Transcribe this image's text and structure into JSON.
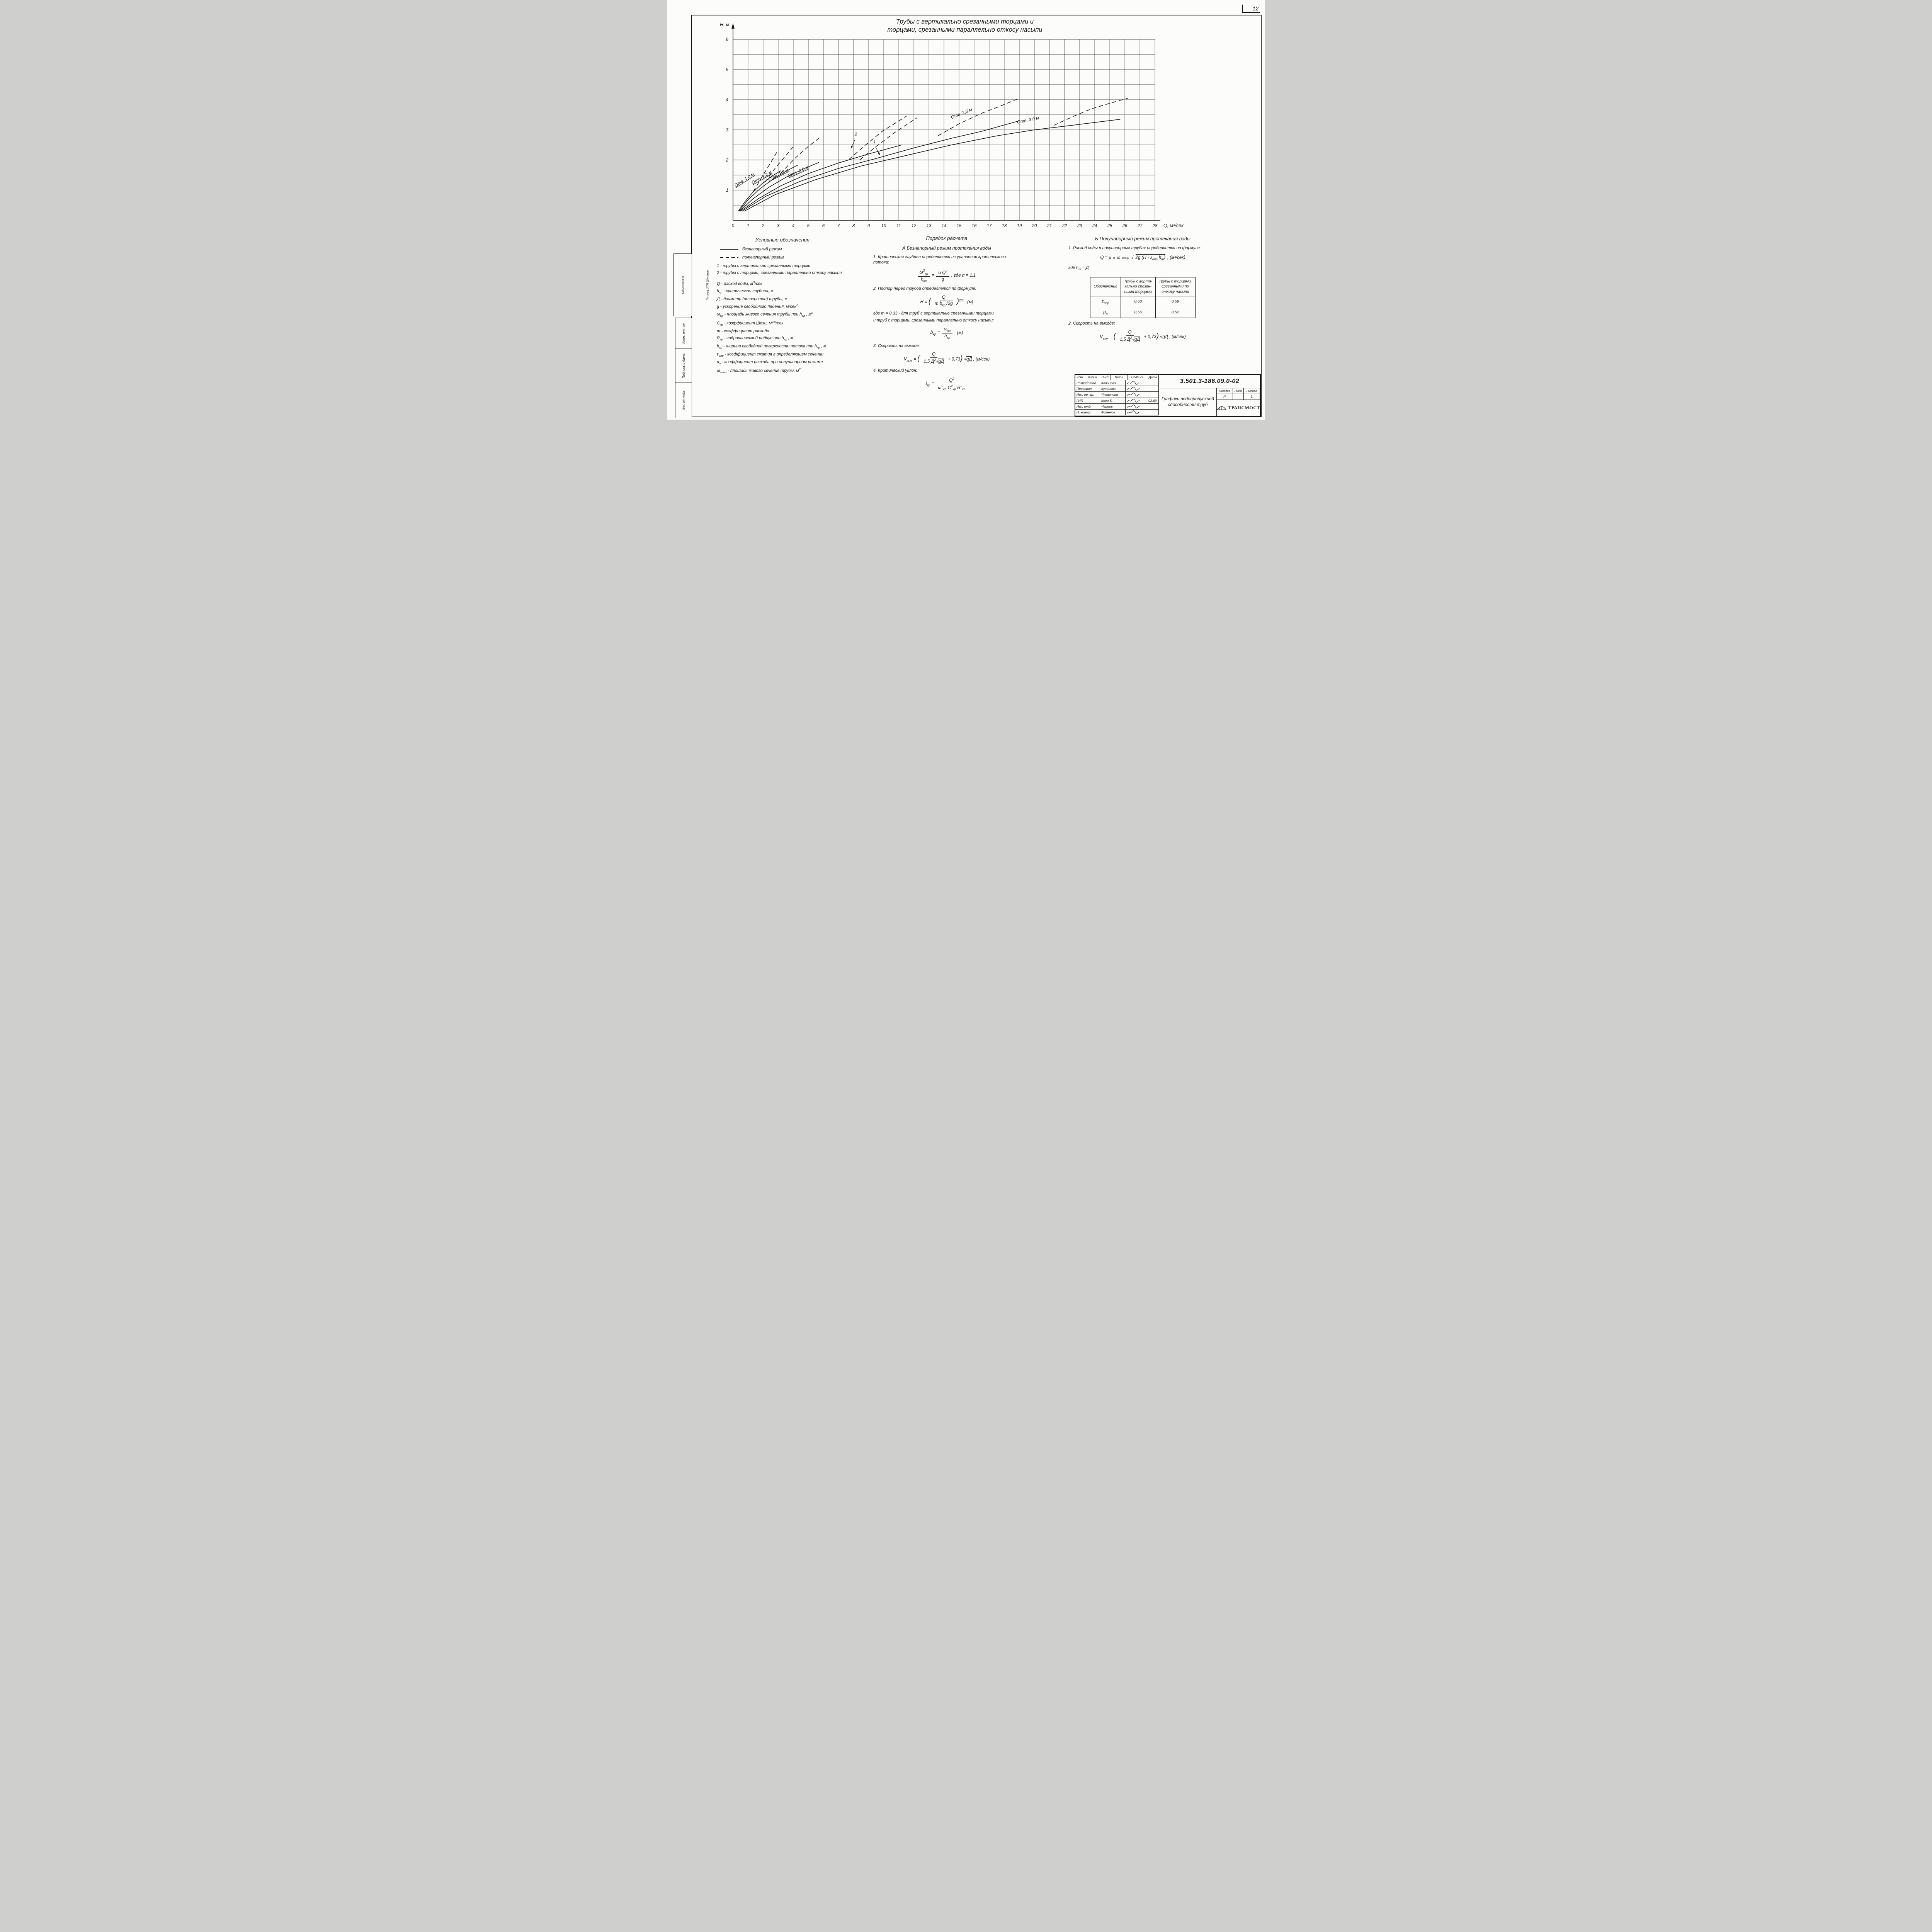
{
  "page": {
    "sheet_number": "12"
  },
  "chart": {
    "title_line1": "Трубы с вертикально срезанными торцами и",
    "title_line2": "торцами, срезанными параллельно откосу насыпи",
    "y_axis_label": "Н, м",
    "x_axis_label": "Q, м³/сек"
  },
  "chart_data": {
    "type": "line",
    "title": "Графики водопропускной способности труб с вертикально срезанными торцами и торцами, срезанными параллельно откосу насыпи",
    "xlabel": "Q, м³/сек",
    "ylabel": "Н, м",
    "xlim": [
      0,
      28
    ],
    "ylim": [
      0,
      6
    ],
    "x_ticks": [
      0,
      1,
      2,
      3,
      4,
      5,
      6,
      7,
      8,
      9,
      10,
      11,
      12,
      13,
      14,
      15,
      16,
      17,
      18,
      19,
      20,
      21,
      22,
      23,
      24,
      25,
      26,
      27,
      28
    ],
    "y_ticks": [
      1,
      2,
      3,
      4,
      5,
      6
    ],
    "grid": {
      "x_step": 1,
      "y_step": 0.5,
      "on": true
    },
    "series": [
      {
        "name": "Отв. 1,0 м",
        "regime": "безнапорный",
        "style": "solid",
        "points": [
          [
            0.35,
            0.3
          ],
          [
            0.8,
            0.62
          ],
          [
            1.3,
            0.92
          ],
          [
            1.9,
            1.2
          ],
          [
            2.6,
            1.47
          ],
          [
            3.2,
            1.65
          ]
        ]
      },
      {
        "name": "Отв. 1,0 м",
        "regime": "полунапорный",
        "style": "dashed",
        "points": [
          [
            1.35,
            0.95
          ],
          [
            1.9,
            1.42
          ],
          [
            2.45,
            1.87
          ],
          [
            2.9,
            2.25
          ]
        ]
      },
      {
        "name": "Отв. 1,2 м",
        "regime": "безнапорный",
        "style": "solid",
        "points": [
          [
            0.4,
            0.3
          ],
          [
            1.0,
            0.68
          ],
          [
            1.8,
            1.05
          ],
          [
            2.7,
            1.38
          ],
          [
            3.6,
            1.65
          ],
          [
            4.3,
            1.83
          ]
        ]
      },
      {
        "name": "Отв. 1,2 м",
        "regime": "полунапорный",
        "style": "dashed",
        "points": [
          [
            2.1,
            1.25
          ],
          [
            2.8,
            1.73
          ],
          [
            3.5,
            2.14
          ],
          [
            4.1,
            2.5
          ]
        ]
      },
      {
        "name": "Отв. 1,5 м",
        "regime": "безнапорный",
        "style": "solid",
        "points": [
          [
            0.45,
            0.3
          ],
          [
            1.3,
            0.7
          ],
          [
            2.4,
            1.1
          ],
          [
            3.6,
            1.45
          ],
          [
            4.8,
            1.73
          ],
          [
            5.7,
            1.92
          ]
        ]
      },
      {
        "name": "Отв. 1,5 м",
        "regime": "полунапорный",
        "style": "dashed",
        "points": [
          [
            3.15,
            1.55
          ],
          [
            4.1,
            2.05
          ],
          [
            5.0,
            2.45
          ],
          [
            5.7,
            2.72
          ]
        ]
      },
      {
        "name": "Отв. 2,0 м",
        "regime": "безнапорный",
        "style": "solid",
        "points": [
          [
            0.5,
            0.3
          ],
          [
            1.7,
            0.72
          ],
          [
            3.2,
            1.15
          ],
          [
            5.0,
            1.55
          ],
          [
            7.0,
            1.9
          ],
          [
            9.0,
            2.2
          ],
          [
            11.2,
            2.5
          ]
        ]
      },
      {
        "name": "Отв. 2,0 м (тип 2)",
        "regime": "полунапорный",
        "style": "dashed",
        "points": [
          [
            7.7,
            2.02
          ],
          [
            8.8,
            2.5
          ],
          [
            9.9,
            2.95
          ],
          [
            11.5,
            3.45
          ]
        ]
      },
      {
        "name": "Отв. 2,0 м (тип 1)",
        "regime": "полунапорный",
        "style": "dashed",
        "points": [
          [
            8.4,
            2.0
          ],
          [
            9.5,
            2.45
          ],
          [
            10.7,
            2.9
          ],
          [
            12.2,
            3.4
          ]
        ]
      },
      {
        "name": "Отв. 2,5 м",
        "regime": "безнапорный",
        "style": "solid",
        "points": [
          [
            0.6,
            0.3
          ],
          [
            2.2,
            0.8
          ],
          [
            4.5,
            1.3
          ],
          [
            7.0,
            1.72
          ],
          [
            9.5,
            2.05
          ],
          [
            12.0,
            2.4
          ],
          [
            14.5,
            2.72
          ],
          [
            16.5,
            2.95
          ],
          [
            19.0,
            3.3
          ]
        ]
      },
      {
        "name": "Отв. 2,5 м",
        "regime": "полунапорный",
        "style": "dashed",
        "points": [
          [
            13.6,
            2.8
          ],
          [
            15.0,
            3.2
          ],
          [
            16.5,
            3.55
          ],
          [
            17.8,
            3.8
          ],
          [
            19.0,
            4.05
          ]
        ]
      },
      {
        "name": "Отв. 3,0 м",
        "regime": "безнапорный",
        "style": "solid",
        "points": [
          [
            0.75,
            0.3
          ],
          [
            2.8,
            0.85
          ],
          [
            5.5,
            1.35
          ],
          [
            8.5,
            1.8
          ],
          [
            11.5,
            2.15
          ],
          [
            14.5,
            2.5
          ],
          [
            17.5,
            2.8
          ],
          [
            20.0,
            3.0
          ],
          [
            22.5,
            3.15
          ],
          [
            25.7,
            3.35
          ]
        ]
      },
      {
        "name": "Отв. 3,0 м",
        "regime": "полунапорный",
        "style": "dashed",
        "points": [
          [
            21.3,
            3.15
          ],
          [
            22.6,
            3.45
          ],
          [
            23.8,
            3.7
          ],
          [
            25.0,
            3.88
          ],
          [
            26.2,
            4.05
          ]
        ]
      }
    ],
    "labels": [
      {
        "text": "Отв. 1,0 м",
        "q": 0.8,
        "h": 1.3,
        "rot": -33,
        "ul": true
      },
      {
        "text": "Отв. 1,2 м",
        "q": 1.95,
        "h": 1.38,
        "rot": -30,
        "ul": true
      },
      {
        "text": "Отв. 1,5 м",
        "q": 3.05,
        "h": 1.47,
        "rot": -27,
        "ul": true
      },
      {
        "text": "Отв. 2,0 м",
        "q": 4.35,
        "h": 1.57,
        "rot": -24,
        "ul": true
      },
      {
        "text": "Отв. 2,5 м",
        "q": 15.2,
        "h": 3.5,
        "rot": -22
      },
      {
        "text": "Отв. 3,0 м",
        "q": 19.6,
        "h": 3.28,
        "rot": -12
      },
      {
        "text": "2",
        "q": 8.15,
        "h": 2.8,
        "rot": 0,
        "leader": {
          "x1": 8.1,
          "y1": 2.68,
          "x2": 7.82,
          "y2": 2.38
        }
      },
      {
        "text": "1",
        "q": 9.4,
        "h": 2.56,
        "rot": 0,
        "leader": {
          "x1": 9.45,
          "y1": 2.44,
          "x2": 9.75,
          "y2": 2.16
        }
      }
    ],
    "legend_position": "below-left",
    "line_color": "#161616"
  },
  "legend": {
    "title": "Условные  обозначения",
    "items": [
      {
        "style": "solid",
        "label": "безнапорный режим"
      },
      {
        "style": "dashed",
        "label": "полунапорный режим"
      }
    ],
    "notes": [
      "1 - трубы с вертикально срезанными торцами",
      "2 - трубы с торцами, срезанными параллельно откосу насыпи"
    ]
  },
  "definitions": [
    "Q - расход воды, м<sup>3</sup>/сек",
    "h<sub>кр</sub> - критическая глубина, м",
    "Д - диаметр (отверстие) трубы, м",
    "g - ускорение свободного падения, м/сек<sup>2</sup>",
    "ω<sub>кр</sub> - площадь живого сечения трубы при h<sub>кр</sub> , м<sup>2</sup>",
    "С<sub>кр</sub> - коэффициент Шези, м<sup>0,5</sup>/сек",
    "m - коэффициент расхода",
    "R<sub>кр</sub> - гидравлический радиус при h<sub>кр</sub> , м",
    "b<sub>кр</sub> - ширина свободной поверхности потока при h<sub>кр</sub> , м",
    "ε<sub>опр</sub> - коэффициент сжатия в определяющем сечении",
    "μ<sub>п</sub> - коэффициент расхода при полунапорном режиме",
    "ω<sub>соор</sub> - площадь живого сечения трубы, м<sup>2</sup>"
  ],
  "procedure": {
    "title": "Порядок  расчета",
    "section_a": "А Безнапорный режим протекания воды",
    "step1": {
      "text": "1. Критическая глубина определяется из уравнения критического потока:",
      "f_lhs_num": "ω<sup>3</sup><sub>кр</sub>",
      "f_lhs_den": "b<sub>кр</sub>",
      "eq": "=",
      "f_rhs_num": "α Q<sup>2</sup>",
      "f_rhs_den": "g",
      "tail": ", где α = 1,1"
    },
    "step2": {
      "text": "2. Подпор перед трубой определяется по формуле:",
      "pre": "Н = <span class='bp'>(</span>",
      "num": "Q",
      "den": "m b<sub>кр</sub>√<span class='ovl'>2g</span>",
      "post": "<span class='bp'>)</span><sup>2/3</sup> , (м)",
      "note1": "где m = 0,33 - для труб с вертикально срезанными торцами",
      "note2": "и труб с торцами, срезанными параллельно откосу насыпи;",
      "b_lhs": "b<sub>кр</sub> =",
      "b_num": "ω<sub>кр</sub>",
      "b_den": "h<sub>кр</sub>",
      "b_tail": ", (м)"
    },
    "step3": {
      "text": "3. Скорость на выходе:",
      "pre": "V<sub>вых</sub> = <span class='bp'>(</span>",
      "num": "Q",
      "den": "1,5 Д<sup>2</sup>√<span class='ovl'>gД</span>",
      "post": "+ 0,73<span class='bp'>)</span> √<span class='ovl'>gД</span> , (м/сек)"
    },
    "step4": {
      "text": "4. Критический уклон:",
      "lhs": "i<sub>кр</sub> =",
      "num": "Q<sup>2</sup>",
      "den": "ω<sup>2</sup><sub>кр</sub> С<sup>2</sup><sub>кр</sub> R<sup>2</sup><sub>кр</sub>"
    }
  },
  "semi_pressure": {
    "title": "Б Полунапорный  режим протекания воды",
    "p1": "1. Расход воды в полунапорных трубах определяется по формуле:",
    "formula1": "Q = μ<sub>п</sub> ω<sub>соор</sub> √<span class='ovl'>2g (Н - ε<sub>опр</sub> h<sub>т</sub>)</span> , (м³/сек)",
    "where": "где h<sub>т</sub> = Д",
    "table": {
      "headers": [
        "Обозначение",
        "Трубы с верти-<br>кально срезан-<br>ными торцами",
        "Трубы с торцами,<br>срезанными  по<br>откосу насыпи"
      ],
      "rows": [
        [
          "ε<sub>опр</sub>",
          "0,63",
          "0,59"
        ],
        [
          "μ<sub>п</sub>",
          "0,56",
          "0,52"
        ]
      ]
    },
    "p2": "2. Скорость на выходе:",
    "f2_pre": "V<sub>вых</sub> = <span class='bp'>(</span>",
    "f2_num": "Q",
    "f2_den": "1,5 Д<sup>2</sup>√<span class='ovl'>gД</span>",
    "f2_post": "+ 0,73<span class='bp'>)</span> √<span class='ovl'>gД</span> , (м/сек)"
  },
  "title_block": {
    "doc_number": "3.501.3-186.09.0-02",
    "doc_title_line1": "Графики водопропускной",
    "doc_title_line2": "способности труб",
    "header_cells": [
      "Изм.",
      "Колич.",
      "Лист",
      "№док.",
      "Подпись",
      "Дата"
    ],
    "rows": [
      {
        "role": "Разработал",
        "name": "Кольцова",
        "sig": true,
        "date": ""
      },
      {
        "role": "Проверил",
        "name": "Кучанова",
        "sig": true,
        "date": ""
      },
      {
        "role": "Нач. пр. гр.",
        "name": "Чупарнова",
        "sig": true,
        "date": ""
      },
      {
        "role": "ГИП",
        "name": "Коен Б.",
        "sig": true,
        "date": "02.69"
      },
      {
        "role": "Нач. отд.",
        "name": "Чернов",
        "sig": true,
        "date": ""
      },
      {
        "role": "Н. контр.",
        "name": "Фоменок",
        "sig": true,
        "date": ""
      }
    ],
    "stage_headers": [
      "Стадия",
      "Лист",
      "Листов"
    ],
    "stage_values": [
      "Р",
      "",
      "1"
    ],
    "logo_text": "ТРАНСМОСТ"
  },
  "side": {
    "approve": "Согласовано",
    "approver": "Гл.спец.ОТП Шульман",
    "strips": [
      "Взам. инв. №",
      "Подпись и дата",
      "Инв. № подл."
    ]
  }
}
